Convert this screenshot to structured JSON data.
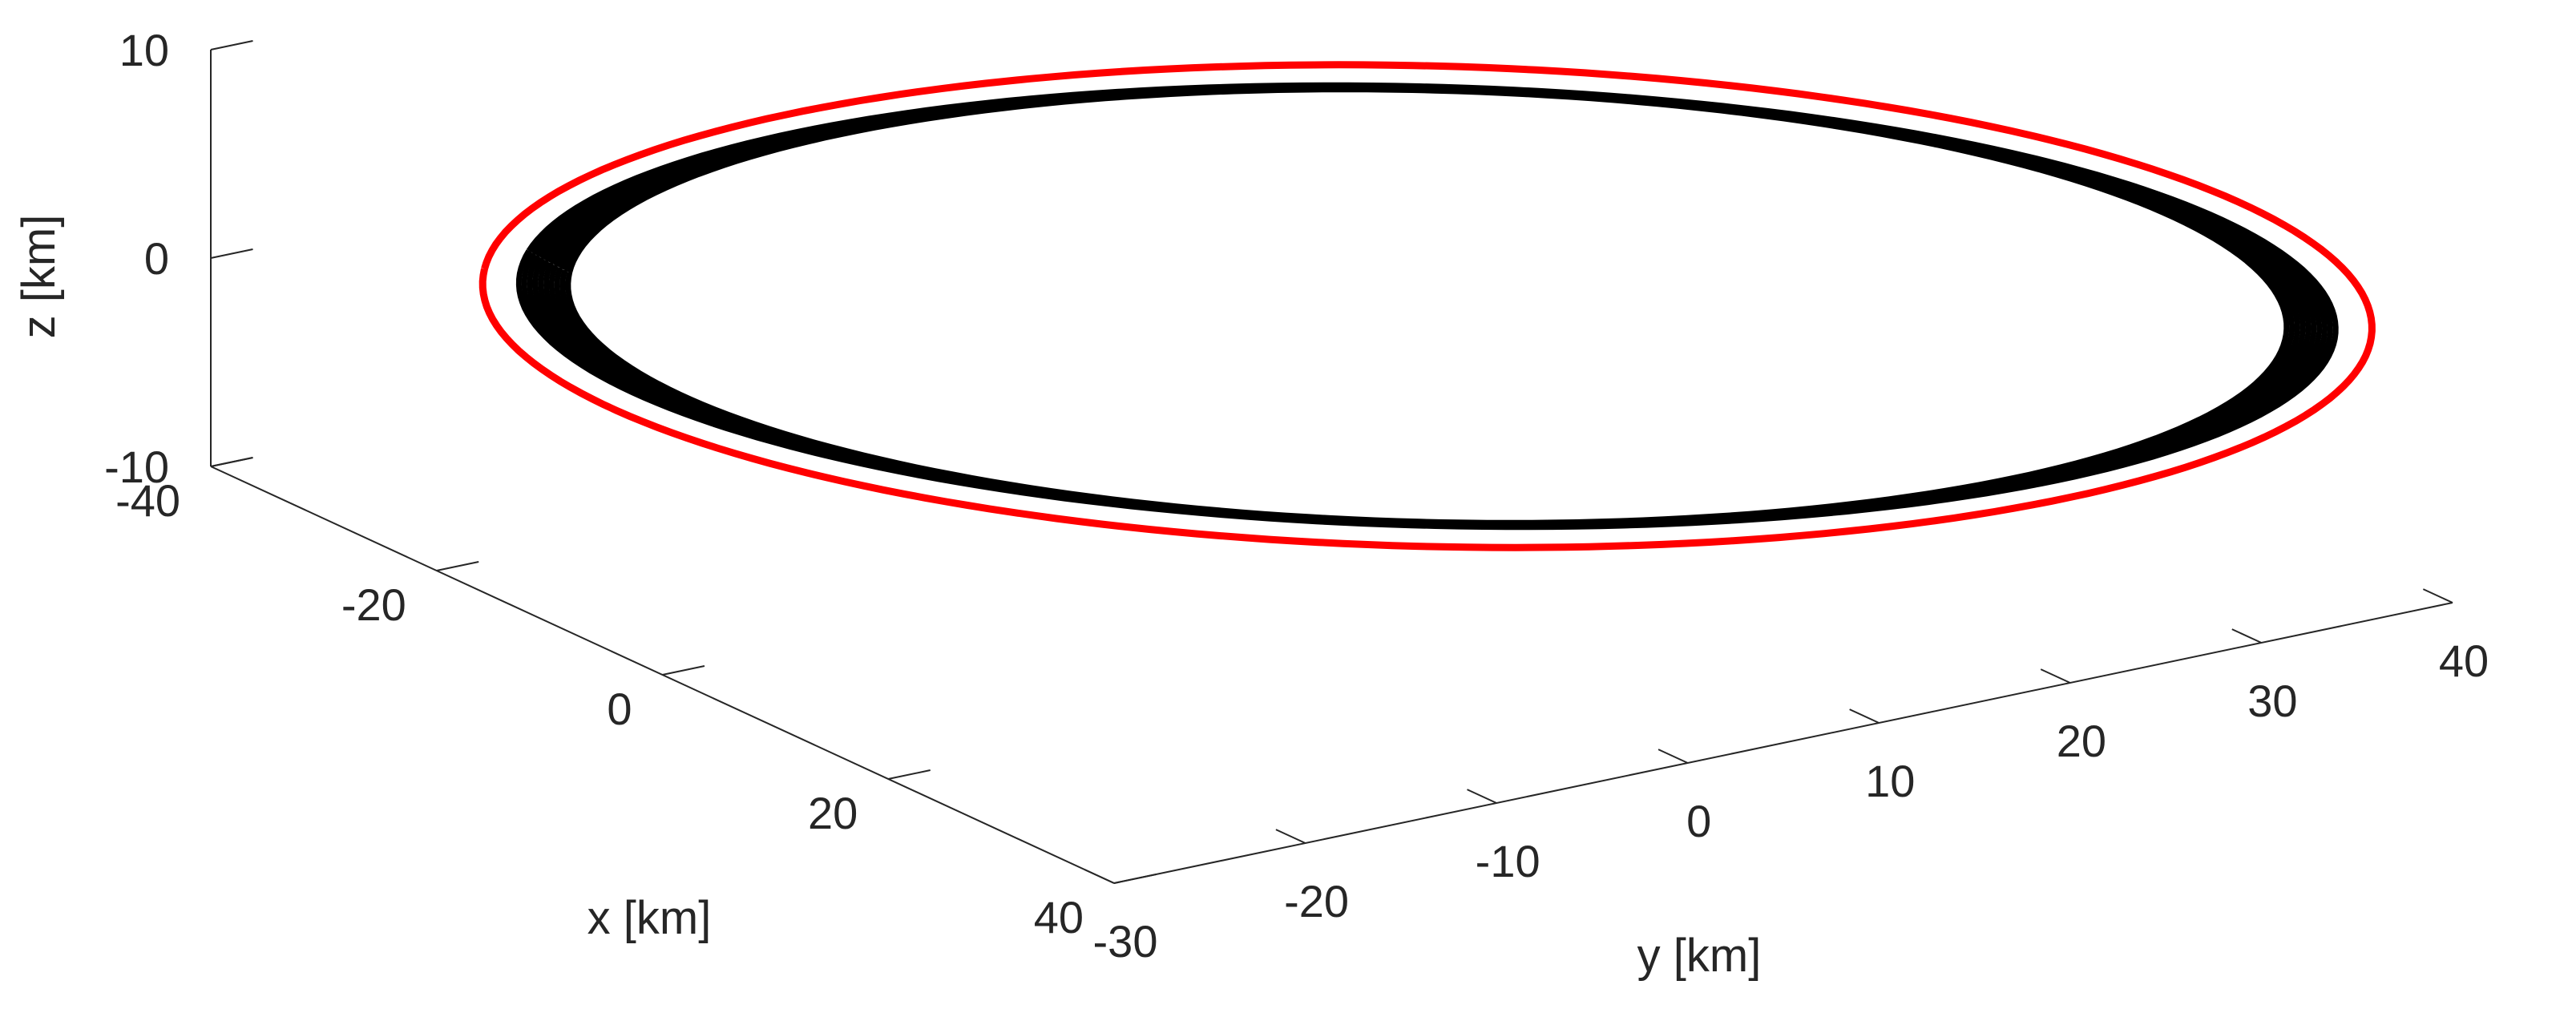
{
  "chart_data": {
    "type": "line-3d",
    "title": "",
    "xlabel": "x [km]",
    "ylabel": "y [km]",
    "zlabel": "z [km]",
    "xlim": [
      -40,
      40
    ],
    "ylim": [
      -30,
      40
    ],
    "zlim": [
      -10,
      10
    ],
    "xticks": [
      -40,
      -20,
      0,
      20,
      40
    ],
    "yticks": [
      -30,
      -20,
      -10,
      0,
      10,
      20,
      30,
      40
    ],
    "zticks": [
      -10,
      0,
      10
    ],
    "xtick_labels": [
      "-40",
      "-20",
      "0",
      "20",
      "40"
    ],
    "ytick_labels": [
      "-30",
      "-20",
      "-10",
      "0",
      "10",
      "20",
      "30",
      "40"
    ],
    "ztick_labels": [
      "-10",
      "0",
      "10"
    ],
    "grid": false,
    "legend": "none",
    "series": [
      {
        "color": "#000000",
        "description": "closed relative orbit, many overlapping revolutions (thick band)",
        "ellipse_center": [
          0,
          10,
          0
        ],
        "ellipse_axis_a": [
          -30,
          -30,
          0
        ],
        "ellipse_axis_b": [
          -12,
          10,
          6
        ],
        "band": "radial spread about 6% between revolutions"
      },
      {
        "color": "#ff0000",
        "description": "single reference orbit overlaid on outside of the black band",
        "ellipse_center": [
          0,
          10,
          0
        ],
        "ellipse_axis_a": [
          -31,
          -31,
          0
        ],
        "ellipse_axis_b": [
          -12.5,
          10.5,
          6.3
        ]
      }
    ]
  }
}
